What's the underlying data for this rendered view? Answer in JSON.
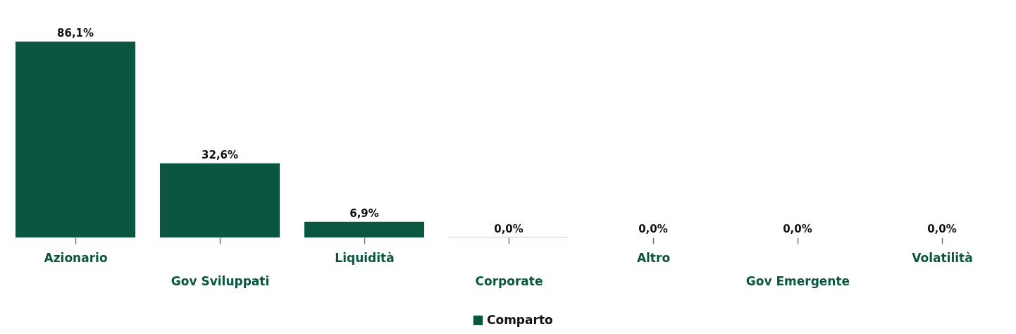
{
  "chart_data": {
    "type": "bar",
    "categories": [
      "Azionario",
      "Gov Sviluppati",
      "Liquidità",
      "Corporate",
      "Altro",
      "Gov Emergente",
      "Volatilità"
    ],
    "series": [
      {
        "name": "Comparto",
        "color": "#0b5640",
        "values": [
          86.1,
          32.6,
          6.9,
          0.04,
          0,
          0,
          0
        ],
        "value_labels": [
          "86,1%",
          "32,6%",
          "6,9%",
          "0,0%",
          "0,0%",
          "0,0%",
          "0,0%"
        ]
      }
    ],
    "tick_labels": "x",
    "legend": "bottom"
  }
}
